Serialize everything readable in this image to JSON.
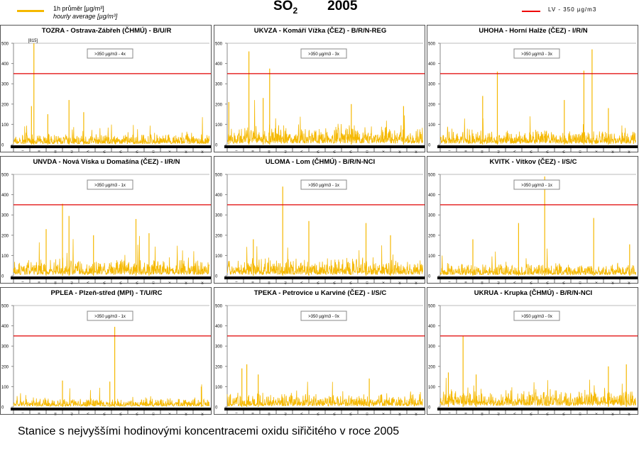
{
  "legend": {
    "line1": "1h průměr [µg/m³]",
    "line2": "hourly average [µg/m³]",
    "lv": "LV   - 350 µg/m3"
  },
  "header": {
    "pollutant": "SO",
    "subscript": "2",
    "year": "2005"
  },
  "caption": "Stanice s nejvyššími hodinovými koncentracemi oxidu siřičitého v roce 2005",
  "colors": {
    "series": "#f5b800",
    "limit": "#e00000"
  },
  "chart_data": [
    {
      "type": "line",
      "title": "TOZRA - Ostrava-Zábřeh (ČHMÚ) - B/U/R",
      "box": ">350 µg/m3 - 4x",
      "base": 25,
      "peaks": [
        [
          1.25,
          815
        ],
        [
          3.4,
          220
        ],
        [
          4.3,
          160
        ],
        [
          2.1,
          150
        ],
        [
          1.1,
          190
        ]
      ],
      "clip_label": "[815]"
    },
    {
      "type": "line",
      "title": "UKVZA - Komáří Vížka (ČEZ) - B/R/N-REG",
      "box": ">350 µg/m3 - 3x",
      "base": 45,
      "peaks": [
        [
          1.33,
          460
        ],
        [
          2.6,
          375
        ],
        [
          2.2,
          230
        ],
        [
          0.1,
          210
        ],
        [
          7.6,
          200
        ],
        [
          10.8,
          190
        ]
      ]
    },
    {
      "type": "line",
      "title": "UHOHA - Horní Halže (ČEZ) - I/R/N",
      "box": ">350 µg/m3 - 3x",
      "base": 35,
      "peaks": [
        [
          3.5,
          360
        ],
        [
          8.8,
          365
        ],
        [
          9.3,
          470
        ],
        [
          2.6,
          240
        ],
        [
          7.6,
          220
        ],
        [
          10.3,
          180
        ]
      ]
    },
    {
      "type": "line",
      "title": "UNVDA - Nová Víska u Domašína (ČEZ) - I/R/N",
      "box": ">350 µg/m3 - 1x",
      "base": 40,
      "peaks": [
        [
          3.0,
          355
        ],
        [
          3.4,
          295
        ],
        [
          7.5,
          280
        ],
        [
          2.0,
          230
        ],
        [
          8.3,
          210
        ],
        [
          4.9,
          200
        ]
      ]
    },
    {
      "type": "line",
      "title": "ULOMA - Lom (ČHMÚ) - B/R/N-NCI",
      "box": ">350 µg/m3 - 1x",
      "base": 40,
      "peaks": [
        [
          3.4,
          440
        ],
        [
          5.0,
          270
        ],
        [
          8.5,
          260
        ],
        [
          1.6,
          180
        ],
        [
          10.0,
          200
        ]
      ]
    },
    {
      "type": "line",
      "title": "KVITK - Vítkov (ČEZ) - I/S/C",
      "box": ">350 µg/m3 - 1x",
      "base": 30,
      "peaks": [
        [
          6.4,
          490
        ],
        [
          9.4,
          285
        ],
        [
          4.8,
          260
        ],
        [
          2.0,
          180
        ],
        [
          11.6,
          155
        ]
      ]
    },
    {
      "type": "line",
      "title": "PPLEA - Plzeň-střed (MPI) - T/U/RC",
      "box": ">350 µg/m3 - 1x",
      "base": 20,
      "peaks": [
        [
          6.2,
          395
        ],
        [
          3.0,
          130
        ],
        [
          5.9,
          125
        ],
        [
          11.5,
          100
        ]
      ]
    },
    {
      "type": "line",
      "title": "TPEKA - Petrovice u Karviné (ČEZ) - I/S/C",
      "box": ">350 µg/m3 - 0x",
      "base": 30,
      "peaks": [
        [
          1.2,
          210
        ],
        [
          8.7,
          140
        ],
        [
          0.9,
          190
        ],
        [
          1.9,
          160
        ]
      ]
    },
    {
      "type": "line",
      "title": "UKRUA - Krupka (ČHMÚ) - B/R/N-NCI",
      "box": ">350 µg/m3 - 0x",
      "base": 40,
      "peaks": [
        [
          1.4,
          350
        ],
        [
          11.4,
          210
        ],
        [
          10.3,
          200
        ],
        [
          0.5,
          170
        ],
        [
          2.2,
          160
        ]
      ]
    }
  ],
  "axis": {
    "yticks": [
      "0",
      "100",
      "200",
      "300",
      "400",
      "500"
    ],
    "ymax": 500,
    "limit": 350,
    "months": [
      "I",
      "II",
      "III",
      "IV",
      "V",
      "VI",
      "VII",
      "VIII",
      "IX",
      "X",
      "XI",
      "XII"
    ]
  }
}
